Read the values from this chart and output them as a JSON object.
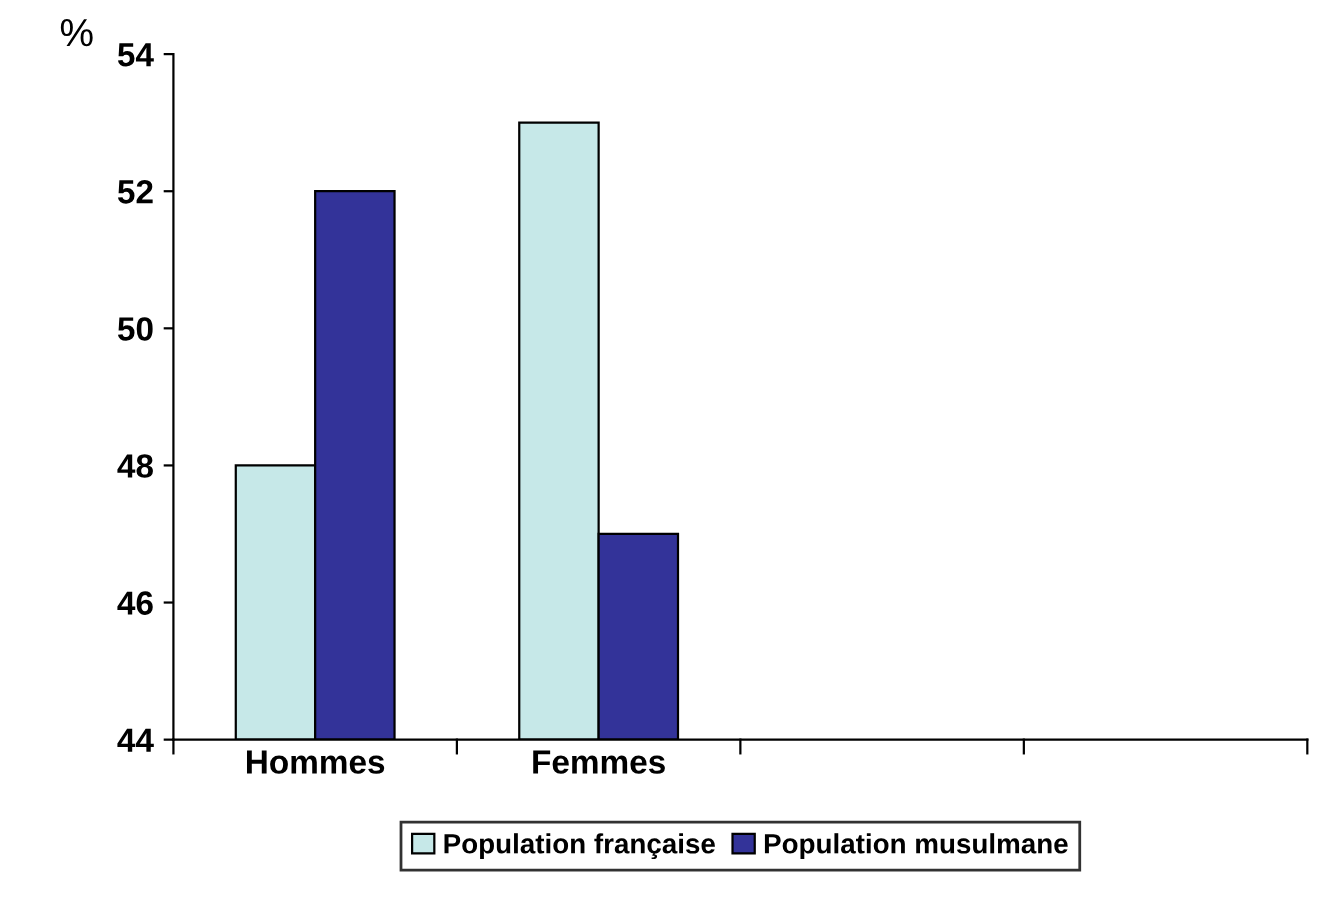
{
  "chart_data": {
    "type": "bar",
    "ylabel": "%",
    "categories": [
      "Hommes",
      "Femmes",
      null,
      null
    ],
    "series": [
      {
        "name": "Population française",
        "color": "#c6e8e8",
        "values": [
          48,
          53,
          null,
          null
        ]
      },
      {
        "name": "Population musulmane",
        "color": "#333399",
        "values": [
          52,
          47,
          null,
          null
        ]
      }
    ],
    "ylim": [
      44,
      54
    ],
    "yticks": [
      44,
      46,
      48,
      50,
      52,
      54
    ],
    "grid": false,
    "legend": "bottom"
  }
}
